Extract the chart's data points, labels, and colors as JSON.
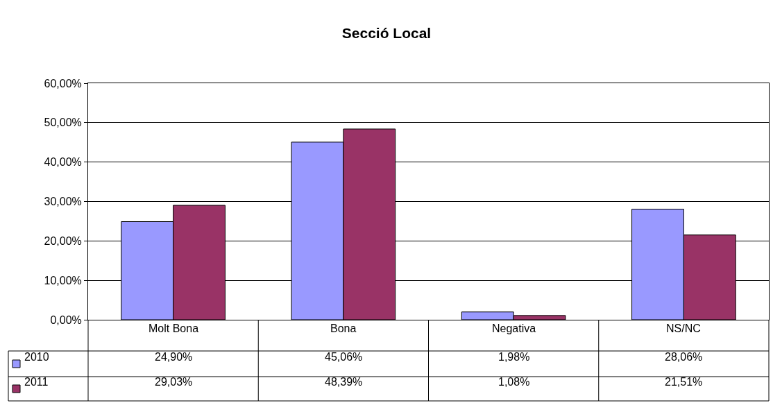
{
  "chart_data": {
    "type": "bar",
    "title": "Secció Local",
    "categories": [
      "Molt Bona",
      "Bona",
      "Negativa",
      "NS/NC"
    ],
    "series": [
      {
        "name": "2010",
        "color": "#9999ff",
        "values": [
          24.9,
          45.06,
          1.98,
          28.06
        ],
        "value_labels": [
          "24,90%",
          "45,06%",
          "1,98%",
          "28,06%"
        ]
      },
      {
        "name": "2011",
        "color": "#993366",
        "values": [
          29.03,
          48.39,
          1.08,
          21.51
        ],
        "value_labels": [
          "29,03%",
          "48,39%",
          "1,08%",
          "21,51%"
        ]
      }
    ],
    "ylim": [
      0,
      60
    ],
    "yticks": [
      {
        "value": 0,
        "label": "0,00%"
      },
      {
        "value": 10,
        "label": "10,00%"
      },
      {
        "value": 20,
        "label": "20,00%"
      },
      {
        "value": 30,
        "label": "30,00%"
      },
      {
        "value": 40,
        "label": "40,00%"
      },
      {
        "value": 50,
        "label": "50,00%"
      },
      {
        "value": 60,
        "label": "60,00%"
      }
    ],
    "grid": "y",
    "legend": "bottom"
  }
}
